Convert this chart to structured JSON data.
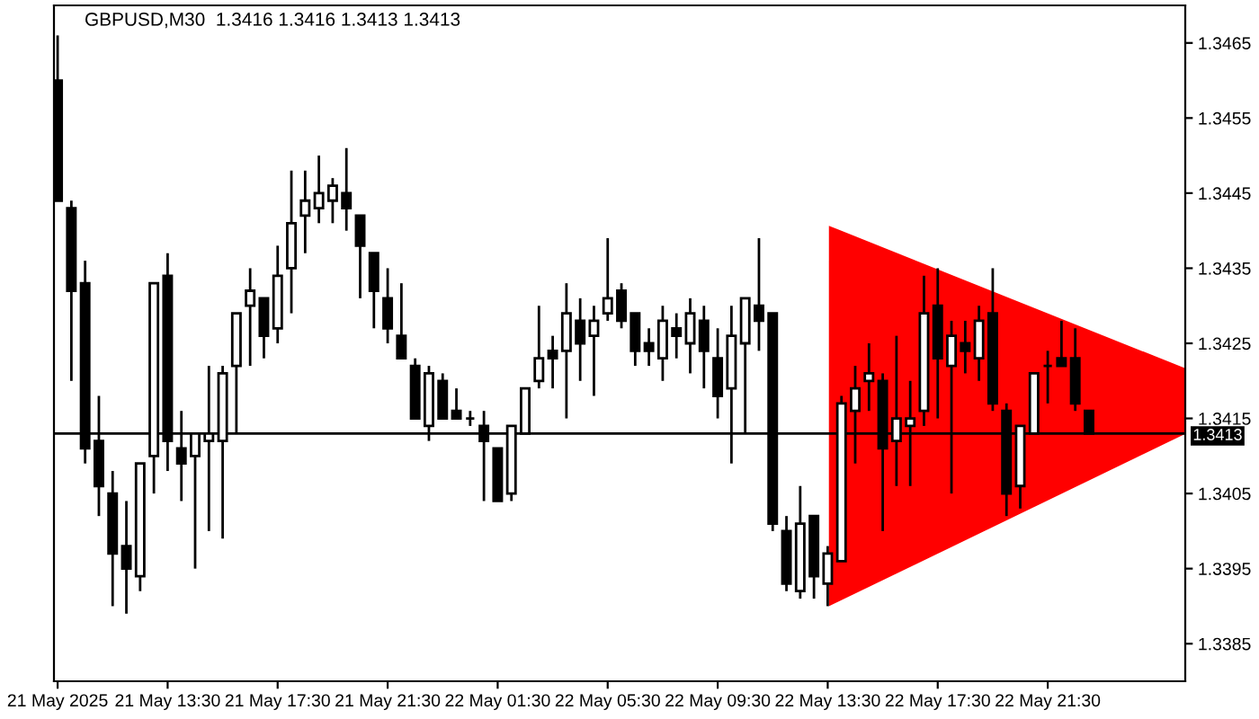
{
  "chart_data": {
    "type": "candlestick",
    "title": "GBPUSD,M30  1.3416 1.3416 1.3413 1.3413",
    "x": [
      "2025-05-21T09:30",
      "2025-05-21T10:00",
      "2025-05-21T10:30",
      "2025-05-21T11:00",
      "2025-05-21T11:30",
      "2025-05-21T12:00",
      "2025-05-21T12:30",
      "2025-05-21T13:00",
      "2025-05-21T13:30",
      "2025-05-21T14:00",
      "2025-05-21T14:30",
      "2025-05-21T15:00",
      "2025-05-21T15:30",
      "2025-05-21T16:00",
      "2025-05-21T16:30",
      "2025-05-21T17:00",
      "2025-05-21T17:30",
      "2025-05-21T18:00",
      "2025-05-21T18:30",
      "2025-05-21T19:00",
      "2025-05-21T19:30",
      "2025-05-21T20:00",
      "2025-05-21T20:30",
      "2025-05-21T21:00",
      "2025-05-21T21:30",
      "2025-05-21T22:00",
      "2025-05-21T22:30",
      "2025-05-21T23:00",
      "2025-05-21T23:30",
      "2025-05-22T00:00",
      "2025-05-22T00:30",
      "2025-05-22T01:00",
      "2025-05-22T01:30",
      "2025-05-22T02:00",
      "2025-05-22T02:30",
      "2025-05-22T03:00",
      "2025-05-22T03:30",
      "2025-05-22T04:00",
      "2025-05-22T04:30",
      "2025-05-22T05:00",
      "2025-05-22T05:30",
      "2025-05-22T06:00",
      "2025-05-22T06:30",
      "2025-05-22T07:00",
      "2025-05-22T07:30",
      "2025-05-22T08:00",
      "2025-05-22T08:30",
      "2025-05-22T09:00",
      "2025-05-22T09:30",
      "2025-05-22T10:00",
      "2025-05-22T10:30",
      "2025-05-22T11:00",
      "2025-05-22T11:30",
      "2025-05-22T12:00",
      "2025-05-22T12:30",
      "2025-05-22T13:00",
      "2025-05-22T13:30",
      "2025-05-22T14:00",
      "2025-05-22T14:30",
      "2025-05-22T15:00",
      "2025-05-22T15:30",
      "2025-05-22T16:00",
      "2025-05-22T16:30",
      "2025-05-22T17:00",
      "2025-05-22T17:30",
      "2025-05-22T18:00",
      "2025-05-22T18:30",
      "2025-05-22T19:00",
      "2025-05-22T19:30",
      "2025-05-22T20:00",
      "2025-05-22T20:30",
      "2025-05-22T21:00",
      "2025-05-22T21:30",
      "2025-05-22T22:00",
      "2025-05-22T22:30",
      "2025-05-22T23:00"
    ],
    "ohlc": [
      [
        1.346,
        1.3466,
        1.3444,
        1.3444
      ],
      [
        1.3443,
        1.3444,
        1.342,
        1.3432
      ],
      [
        1.3433,
        1.3436,
        1.3409,
        1.3411
      ],
      [
        1.3412,
        1.3418,
        1.3402,
        1.3406
      ],
      [
        1.3405,
        1.3408,
        1.339,
        1.3397
      ],
      [
        1.3398,
        1.3404,
        1.3389,
        1.3395
      ],
      [
        1.3394,
        1.3409,
        1.3392,
        1.3409
      ],
      [
        1.341,
        1.3433,
        1.3405,
        1.3433
      ],
      [
        1.3434,
        1.3437,
        1.3408,
        1.3412
      ],
      [
        1.3411,
        1.3416,
        1.3404,
        1.3409
      ],
      [
        1.341,
        1.3413,
        1.3395,
        1.3413
      ],
      [
        1.3412,
        1.3422,
        1.34,
        1.3413
      ],
      [
        1.3412,
        1.3422,
        1.3399,
        1.3421
      ],
      [
        1.3422,
        1.3429,
        1.3413,
        1.3429
      ],
      [
        1.343,
        1.3435,
        1.3422,
        1.3432
      ],
      [
        1.3431,
        1.3431,
        1.3423,
        1.3426
      ],
      [
        1.3427,
        1.3438,
        1.3425,
        1.3434
      ],
      [
        1.3435,
        1.3448,
        1.3429,
        1.3441
      ],
      [
        1.3442,
        1.3448,
        1.3437,
        1.3444
      ],
      [
        1.3443,
        1.345,
        1.3441,
        1.3445
      ],
      [
        1.3444,
        1.3447,
        1.3441,
        1.3446
      ],
      [
        1.3445,
        1.3451,
        1.344,
        1.3443
      ],
      [
        1.3442,
        1.3442,
        1.3431,
        1.3438
      ],
      [
        1.3437,
        1.3437,
        1.3427,
        1.3432
      ],
      [
        1.3431,
        1.3435,
        1.3425,
        1.3427
      ],
      [
        1.3426,
        1.3433,
        1.3423,
        1.3423
      ],
      [
        1.3422,
        1.3423,
        1.3415,
        1.3415
      ],
      [
        1.3414,
        1.3422,
        1.3412,
        1.3421
      ],
      [
        1.342,
        1.3421,
        1.3415,
        1.3415
      ],
      [
        1.3416,
        1.3419,
        1.3415,
        1.3415
      ],
      [
        1.3415,
        1.3416,
        1.3414,
        1.3415
      ],
      [
        1.3414,
        1.3416,
        1.3404,
        1.3412
      ],
      [
        1.3411,
        1.3411,
        1.3404,
        1.3404
      ],
      [
        1.3405,
        1.3414,
        1.3404,
        1.3414
      ],
      [
        1.3413,
        1.3419,
        1.3413,
        1.3419
      ],
      [
        1.342,
        1.343,
        1.3419,
        1.3423
      ],
      [
        1.3424,
        1.3426,
        1.3419,
        1.3423
      ],
      [
        1.3424,
        1.3433,
        1.3415,
        1.3429
      ],
      [
        1.3428,
        1.3431,
        1.342,
        1.3425
      ],
      [
        1.3426,
        1.343,
        1.3418,
        1.3428
      ],
      [
        1.3429,
        1.3439,
        1.3428,
        1.3431
      ],
      [
        1.3432,
        1.3433,
        1.3427,
        1.3428
      ],
      [
        1.3429,
        1.3429,
        1.3422,
        1.3424
      ],
      [
        1.3425,
        1.3427,
        1.3422,
        1.3424
      ],
      [
        1.3423,
        1.343,
        1.342,
        1.3428
      ],
      [
        1.3427,
        1.3429,
        1.3423,
        1.3426
      ],
      [
        1.3425,
        1.3431,
        1.3421,
        1.3429
      ],
      [
        1.3428,
        1.343,
        1.3419,
        1.3424
      ],
      [
        1.3423,
        1.3427,
        1.3415,
        1.3418
      ],
      [
        1.3419,
        1.343,
        1.3409,
        1.3426
      ],
      [
        1.3425,
        1.3431,
        1.3413,
        1.3431
      ],
      [
        1.343,
        1.3439,
        1.3424,
        1.3428
      ],
      [
        1.3429,
        1.3429,
        1.34,
        1.3401
      ],
      [
        1.34,
        1.3402,
        1.3392,
        1.3393
      ],
      [
        1.3392,
        1.3406,
        1.3391,
        1.3401
      ],
      [
        1.3402,
        1.3402,
        1.3391,
        1.3394
      ],
      [
        1.3393,
        1.3398,
        1.339,
        1.3397
      ],
      [
        1.3396,
        1.3418,
        1.3396,
        1.3417
      ],
      [
        1.3416,
        1.3422,
        1.3409,
        1.3419
      ],
      [
        1.342,
        1.3425,
        1.3416,
        1.3421
      ],
      [
        1.342,
        1.3421,
        1.34,
        1.3411
      ],
      [
        1.3412,
        1.3426,
        1.3406,
        1.3415
      ],
      [
        1.3414,
        1.342,
        1.3406,
        1.3415
      ],
      [
        1.3416,
        1.3434,
        1.3414,
        1.3429
      ],
      [
        1.343,
        1.3435,
        1.3415,
        1.3423
      ],
      [
        1.3422,
        1.3428,
        1.3405,
        1.3426
      ],
      [
        1.3425,
        1.3428,
        1.3421,
        1.3424
      ],
      [
        1.3423,
        1.343,
        1.342,
        1.3428
      ],
      [
        1.3429,
        1.3435,
        1.3416,
        1.3417
      ],
      [
        1.3416,
        1.3417,
        1.3402,
        1.3405
      ],
      [
        1.3406,
        1.3414,
        1.3403,
        1.3414
      ],
      [
        1.3413,
        1.3421,
        1.3413,
        1.3421
      ],
      [
        1.3422,
        1.3424,
        1.3417,
        1.3422
      ],
      [
        1.3423,
        1.3428,
        1.3422,
        1.3422
      ],
      [
        1.3423,
        1.3427,
        1.3416,
        1.3417
      ],
      [
        1.3416,
        1.3416,
        1.3413,
        1.3413
      ]
    ],
    "xlim": [
      "2025-05-21T09:22",
      "2025-05-23T02:30"
    ],
    "xticks": [
      {
        "value": "2025-05-21T09:30",
        "label": "21 May 2025"
      },
      {
        "value": "2025-05-21T13:30",
        "label": "21 May 13:30"
      },
      {
        "value": "2025-05-21T17:30",
        "label": "21 May 17:30"
      },
      {
        "value": "2025-05-21T21:30",
        "label": "21 May 21:30"
      },
      {
        "value": "2025-05-22T01:30",
        "label": "22 May 01:30"
      },
      {
        "value": "2025-05-22T05:30",
        "label": "22 May 05:30"
      },
      {
        "value": "2025-05-22T09:30",
        "label": "22 May 09:30"
      },
      {
        "value": "2025-05-22T13:30",
        "label": "22 May 13:30"
      },
      {
        "value": "2025-05-22T17:30",
        "label": "22 May 17:30"
      },
      {
        "value": "2025-05-22T21:30",
        "label": "22 May 21:30"
      }
    ],
    "ylim": [
      1.338,
      1.347
    ],
    "yticks": [
      {
        "value": 1.3385,
        "label": "1.3385"
      },
      {
        "value": 1.3395,
        "label": "1.3395"
      },
      {
        "value": 1.3405,
        "label": "1.3405"
      },
      {
        "value": 1.3415,
        "label": "1.3415"
      },
      {
        "value": 1.3425,
        "label": "1.3425"
      },
      {
        "value": 1.3435,
        "label": "1.3435"
      },
      {
        "value": 1.3445,
        "label": "1.3445"
      },
      {
        "value": 1.3455,
        "label": "1.3455"
      },
      {
        "value": 1.3465,
        "label": "1.3465"
      }
    ],
    "ref_lines": [
      {
        "axis": "y",
        "value": 1.3413,
        "label": "1.3413",
        "color": "#000000"
      }
    ],
    "grid": false,
    "legend": false
  }
}
